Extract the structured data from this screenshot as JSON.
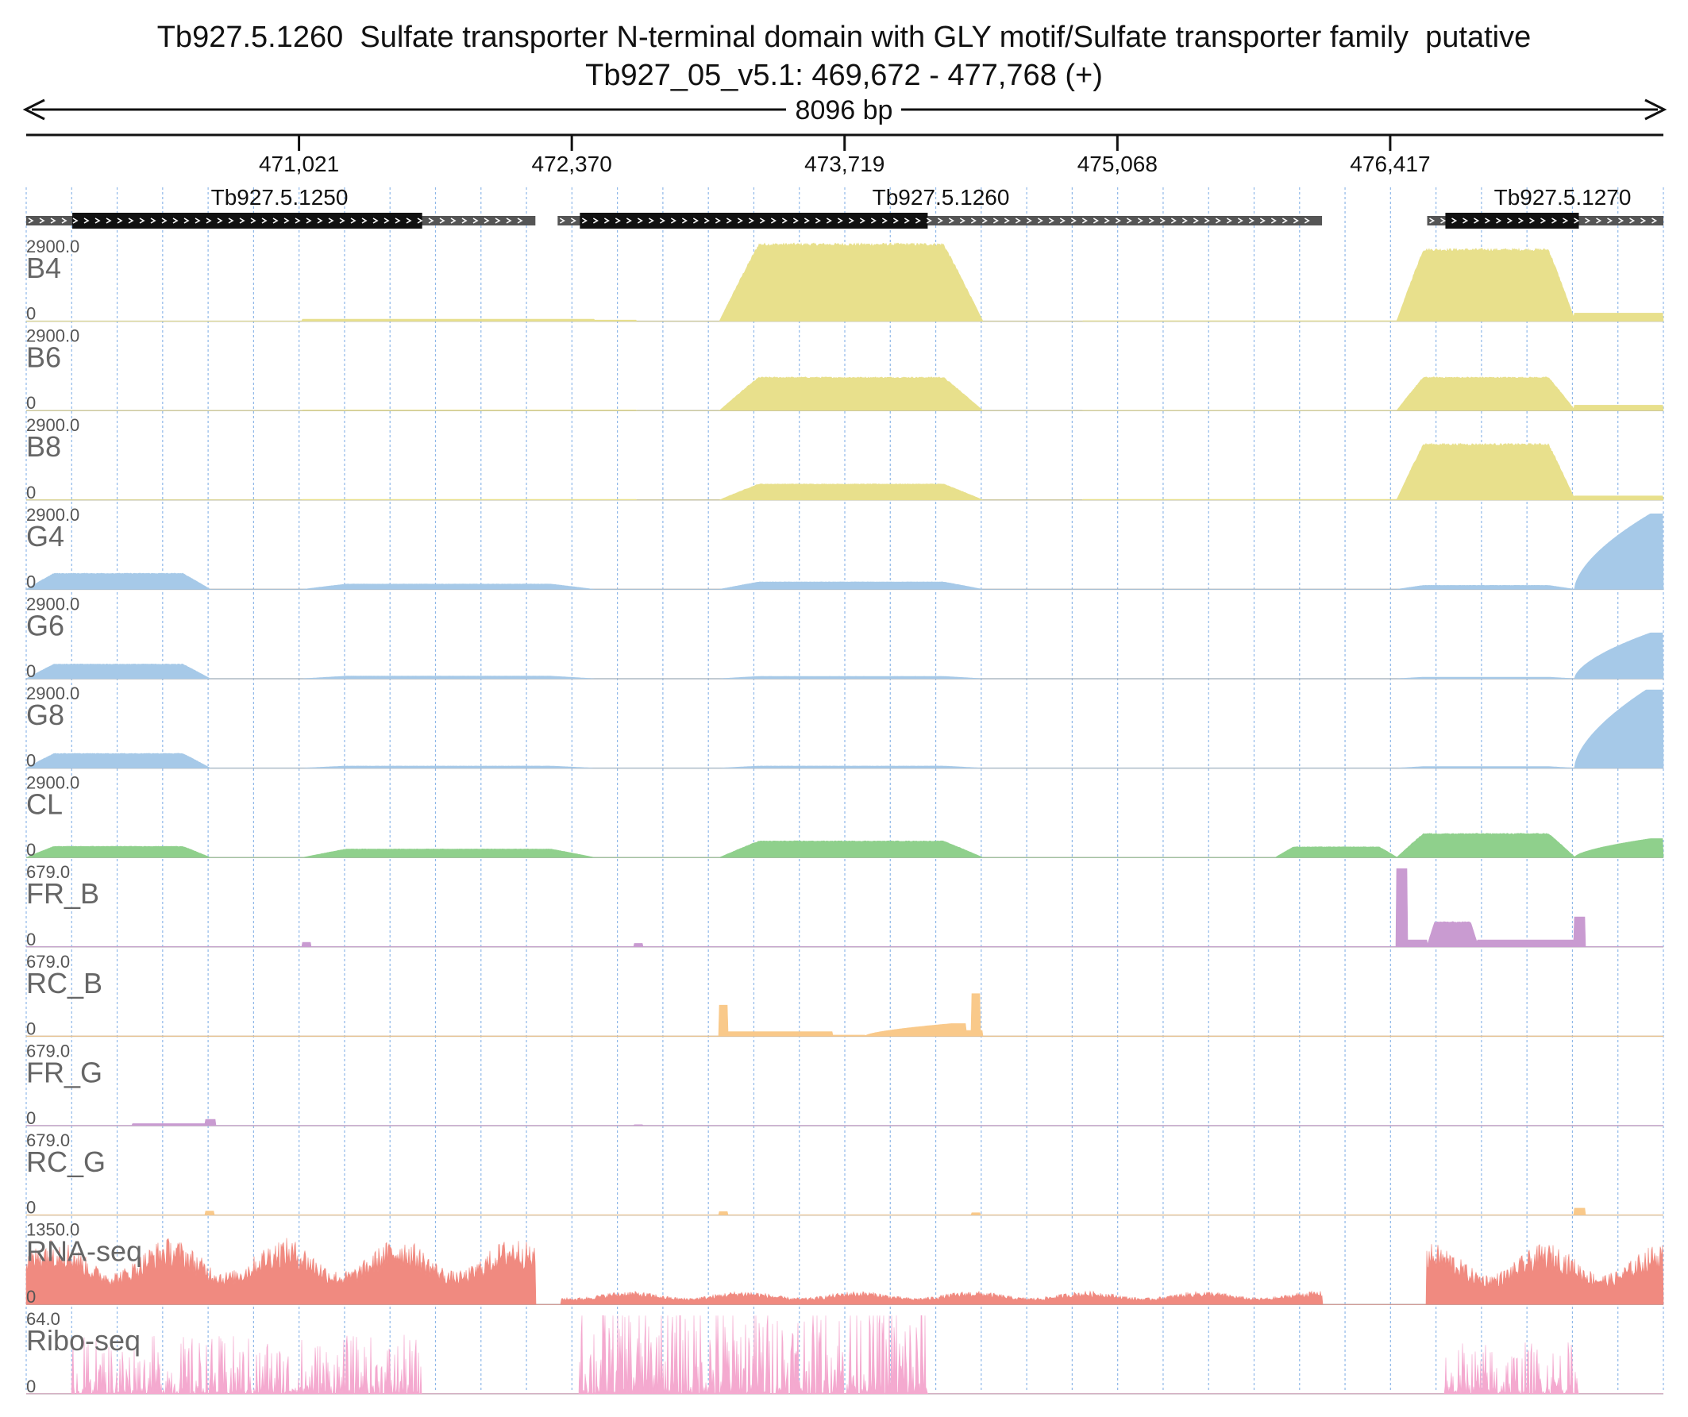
{
  "header": {
    "title": "Tb927.5.1260  Sulfate transporter N-terminal domain with GLY motif/Sulfate transporter family  putative",
    "location": "Tb927_05_v5.1: 469,672 - 477,768 (+)",
    "span_label": "8096 bp"
  },
  "region": {
    "chrom": "Tb927_05_v5.1",
    "start": 469672,
    "end": 477768,
    "strand": "+"
  },
  "ruler": {
    "ticks": [
      {
        "pos": 471021,
        "label": "471,021"
      },
      {
        "pos": 472370,
        "label": "472,370"
      },
      {
        "pos": 473719,
        "label": "473,719"
      },
      {
        "pos": 475068,
        "label": "475,068"
      },
      {
        "pos": 476417,
        "label": "476,417"
      }
    ]
  },
  "genes": [
    {
      "name": "Tb927.5.1250",
      "start": 469672,
      "end": 472190,
      "cds_start": 469900,
      "cds_end": 471630,
      "strand": "+"
    },
    {
      "name": "Tb927.5.1260",
      "start": 472300,
      "end": 476080,
      "cds_start": 472410,
      "cds_end": 474130,
      "strand": "+"
    },
    {
      "name": "Tb927.5.1270",
      "start": 476600,
      "end": 477768,
      "cds_start": 476690,
      "cds_end": 477350,
      "strand": "+"
    }
  ],
  "tracks": [
    {
      "label": "B4",
      "max_label": "2900.0",
      "min_label": "0",
      "color": "#e8e08c",
      "max": 2900,
      "segments": [
        [
          469672,
          471040,
          10
        ],
        [
          471040,
          472480,
          75
        ],
        [
          472480,
          472690,
          40
        ],
        [
          472690,
          473100,
          0
        ],
        [
          473100,
          474400,
          2900,
          "rounded"
        ],
        [
          474900,
          476450,
          15
        ],
        [
          476450,
          477330,
          2700,
          "rounded"
        ],
        [
          477330,
          477768,
          300
        ]
      ]
    },
    {
      "label": "B6",
      "max_label": "2900.0",
      "min_label": "0",
      "color": "#e8e08c",
      "max": 2900,
      "segments": [
        [
          469672,
          471040,
          5
        ],
        [
          471040,
          472690,
          25
        ],
        [
          473100,
          474400,
          1250,
          "rounded"
        ],
        [
          474900,
          476450,
          10
        ],
        [
          476450,
          477330,
          1250,
          "rounded"
        ],
        [
          477330,
          477768,
          200
        ]
      ]
    },
    {
      "label": "B8",
      "max_label": "2900.0",
      "min_label": "0",
      "color": "#e8e08c",
      "max": 2900,
      "segments": [
        [
          469672,
          471040,
          5
        ],
        [
          471040,
          472690,
          25
        ],
        [
          473100,
          474400,
          600,
          "rounded"
        ],
        [
          474900,
          476450,
          20
        ],
        [
          476450,
          477330,
          2100,
          "rounded"
        ],
        [
          477330,
          477768,
          150
        ]
      ]
    },
    {
      "label": "G4",
      "max_label": "2900.0",
      "min_label": "0",
      "color": "#a6c9e8",
      "max": 2900,
      "segments": [
        [
          469672,
          470580,
          600,
          "rounded"
        ],
        [
          471040,
          472480,
          200,
          "rounded"
        ],
        [
          473100,
          474400,
          280,
          "rounded"
        ],
        [
          476450,
          477330,
          150,
          "rounded"
        ],
        [
          477330,
          477768,
          2800,
          "rise"
        ]
      ]
    },
    {
      "label": "G6",
      "max_label": "2900.0",
      "min_label": "0",
      "color": "#a6c9e8",
      "max": 2900,
      "segments": [
        [
          469672,
          470580,
          550,
          "rounded"
        ],
        [
          471040,
          472480,
          100,
          "rounded"
        ],
        [
          473100,
          474400,
          90,
          "rounded"
        ],
        [
          476450,
          477330,
          60,
          "rounded"
        ],
        [
          477330,
          477768,
          1700,
          "rise"
        ]
      ]
    },
    {
      "label": "G8",
      "max_label": "2900.0",
      "min_label": "0",
      "color": "#a6c9e8",
      "max": 2900,
      "segments": [
        [
          469672,
          470580,
          550,
          "rounded"
        ],
        [
          471040,
          472480,
          80,
          "rounded"
        ],
        [
          473100,
          474400,
          80,
          "rounded"
        ],
        [
          476450,
          477330,
          60,
          "rounded"
        ],
        [
          477330,
          477768,
          3000,
          "rise"
        ]
      ]
    },
    {
      "label": "CL",
      "max_label": "2900.0",
      "min_label": "0",
      "color": "#8fd08c",
      "max": 2900,
      "segments": [
        [
          469672,
          470580,
          420,
          "rounded"
        ],
        [
          471040,
          472480,
          320,
          "rounded"
        ],
        [
          473100,
          474400,
          620,
          "rounded"
        ],
        [
          475850,
          476450,
          400,
          "rounded"
        ],
        [
          476450,
          477330,
          900,
          "rounded"
        ],
        [
          477330,
          477768,
          700,
          "rise"
        ]
      ]
    },
    {
      "label": "FR_B",
      "max_label": "679.0",
      "min_label": "0",
      "color": "#c99bd1",
      "max": 679,
      "segments": [
        [
          469672,
          477768,
          2
        ],
        [
          471040,
          471080,
          40
        ],
        [
          472680,
          472720,
          30
        ],
        [
          476450,
          476500,
          679
        ],
        [
          476500,
          476600,
          60
        ],
        [
          476600,
          476850,
          220,
          "rounded"
        ],
        [
          476850,
          477330,
          60
        ],
        [
          477330,
          477380,
          260
        ]
      ]
    },
    {
      "label": "RC_B",
      "max_label": "679.0",
      "min_label": "0",
      "color": "#f9c98a",
      "max": 679,
      "segments": [
        [
          469672,
          477768,
          2
        ],
        [
          473100,
          473140,
          270
        ],
        [
          473140,
          473660,
          40
        ],
        [
          473660,
          473820,
          10
        ],
        [
          473820,
          474320,
          110,
          "rise"
        ],
        [
          474320,
          474400,
          50
        ],
        [
          474350,
          474390,
          370
        ]
      ]
    },
    {
      "label": "FR_G",
      "max_label": "679.0",
      "min_label": "0",
      "color": "#c99bd1",
      "max": 679,
      "segments": [
        [
          469672,
          477768,
          2
        ],
        [
          470200,
          470560,
          18
        ],
        [
          470560,
          470610,
          55
        ],
        [
          472680,
          472720,
          8
        ]
      ]
    },
    {
      "label": "RC_G",
      "max_label": "679.0",
      "min_label": "0",
      "color": "#f9c98a",
      "max": 679,
      "segments": [
        [
          469672,
          477768,
          2
        ],
        [
          470560,
          470600,
          35
        ],
        [
          473100,
          473140,
          30
        ],
        [
          474350,
          474390,
          20
        ],
        [
          477330,
          477380,
          60
        ]
      ]
    },
    {
      "label": "RNA-seq",
      "max_label": "1350.0",
      "min_label": "0",
      "color": "#f08a80",
      "max": 1350,
      "segments": [
        [
          469672,
          472190,
          1150,
          "noisy"
        ],
        [
          472320,
          476080,
          230,
          "noisy"
        ],
        [
          476600,
          477768,
          1050,
          "noisy"
        ]
      ]
    },
    {
      "label": "Ribo-seq",
      "max_label": "64.0",
      "min_label": "0",
      "color": "#f4a9cf",
      "max": 64,
      "segments": [
        [
          469900,
          471630,
          22,
          "spiky"
        ],
        [
          472410,
          474130,
          40,
          "spiky"
        ],
        [
          476690,
          477350,
          20,
          "spiky"
        ]
      ]
    }
  ]
}
